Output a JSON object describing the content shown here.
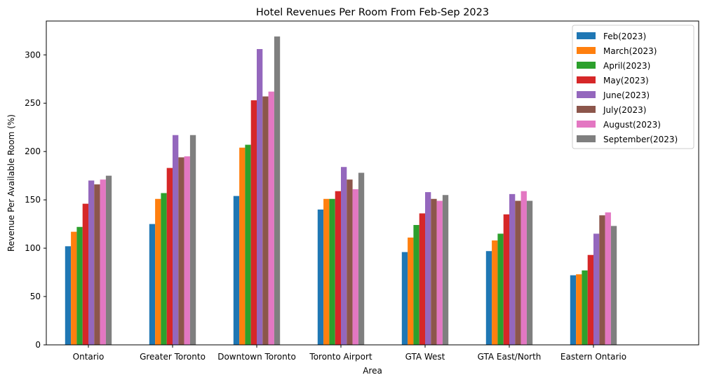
{
  "chart_data": {
    "type": "bar",
    "title": "Hotel Revenues Per Room From Feb-Sep 2023",
    "xlabel": "Area",
    "ylabel": "Revenue Per Available Room (%)",
    "ylim": [
      0,
      335
    ],
    "yticks": [
      0,
      50,
      100,
      150,
      200,
      250,
      300
    ],
    "grid": false,
    "legend_position": "top-right",
    "categories": [
      "Ontario",
      "Greater Toronto",
      "Downtown Toronto",
      "Toronto Airport",
      "GTA West",
      "GTA East/North",
      "Eastern Ontario"
    ],
    "series": [
      {
        "name": "Feb(2023)",
        "color": "#1f77b4",
        "values": [
          102,
          125,
          154,
          140,
          96,
          97,
          72
        ]
      },
      {
        "name": "March(2023)",
        "color": "#ff7f0e",
        "values": [
          117,
          151,
          204,
          151,
          111,
          108,
          73
        ]
      },
      {
        "name": "April(2023)",
        "color": "#2ca02c",
        "values": [
          122,
          157,
          207,
          151,
          124,
          115,
          77
        ]
      },
      {
        "name": "May(2023)",
        "color": "#d62728",
        "values": [
          146,
          183,
          253,
          159,
          136,
          135,
          93
        ]
      },
      {
        "name": "June(2023)",
        "color": "#9467bd",
        "values": [
          170,
          217,
          306,
          184,
          158,
          156,
          115
        ]
      },
      {
        "name": "July(2023)",
        "color": "#8c564b",
        "values": [
          166,
          194,
          257,
          171,
          151,
          149,
          134
        ]
      },
      {
        "name": "August(2023)",
        "color": "#e377c2",
        "values": [
          171,
          195,
          262,
          161,
          149,
          159,
          137
        ]
      },
      {
        "name": "September(2023)",
        "color": "#7f7f7f",
        "values": [
          175,
          217,
          319,
          178,
          155,
          149,
          123
        ]
      }
    ]
  }
}
